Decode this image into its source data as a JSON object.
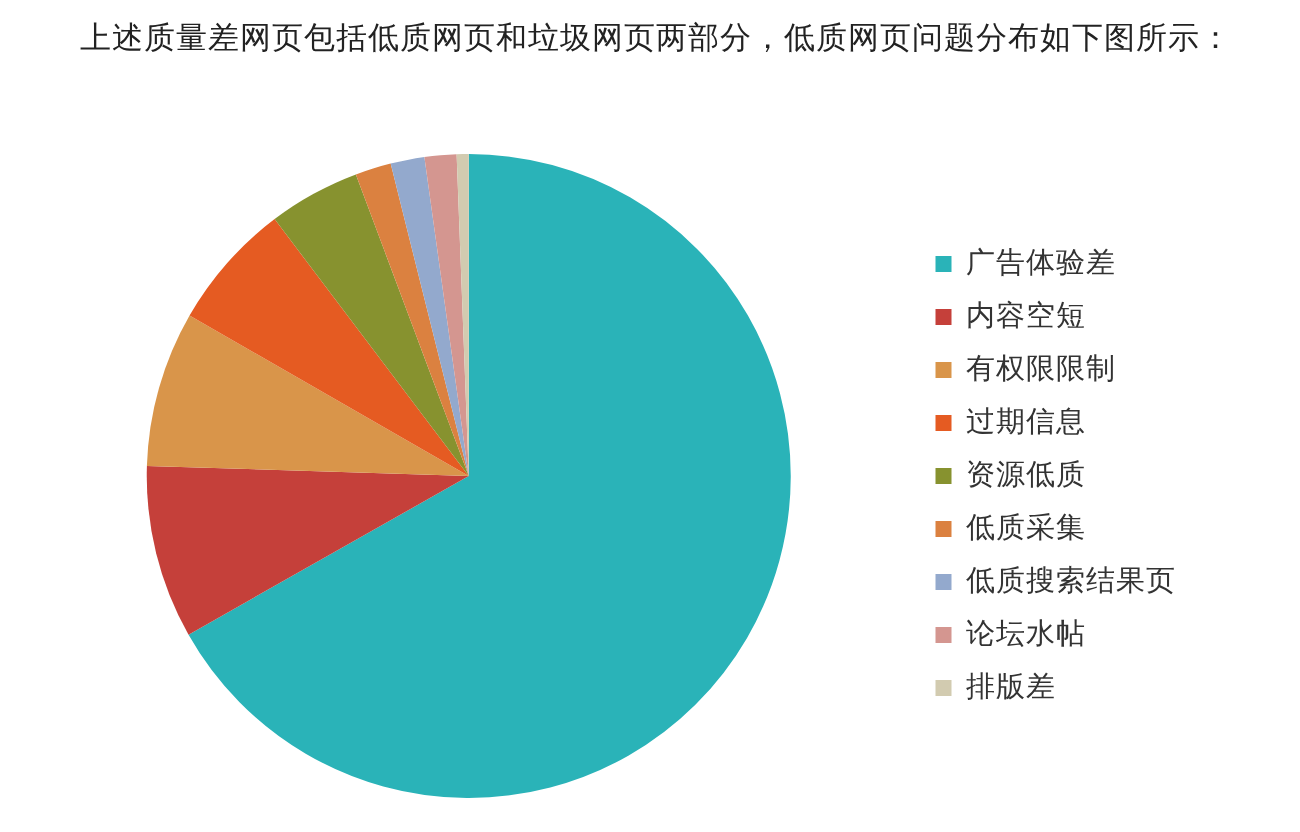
{
  "chart_data": {
    "type": "pie",
    "title": "上述质量差网页包括低质网页和垃圾网页两部分，低质网页问题分布如下图所示：",
    "categories": [
      "广告体验差",
      "内容空短",
      "有权限限制",
      "过期信息",
      "资源低质",
      "低质采集",
      "低质搜索结果页",
      "论坛水帖",
      "排版差"
    ],
    "values": [
      66.8,
      8.7,
      7.8,
      6.4,
      4.6,
      1.8,
      1.7,
      1.6,
      0.6
    ],
    "colors": [
      "#2ab3b8",
      "#c5403a",
      "#d9954a",
      "#e55b22",
      "#87922f",
      "#db8140",
      "#93a9cd",
      "#d49690",
      "#d2cbb0"
    ],
    "legend": "right"
  }
}
